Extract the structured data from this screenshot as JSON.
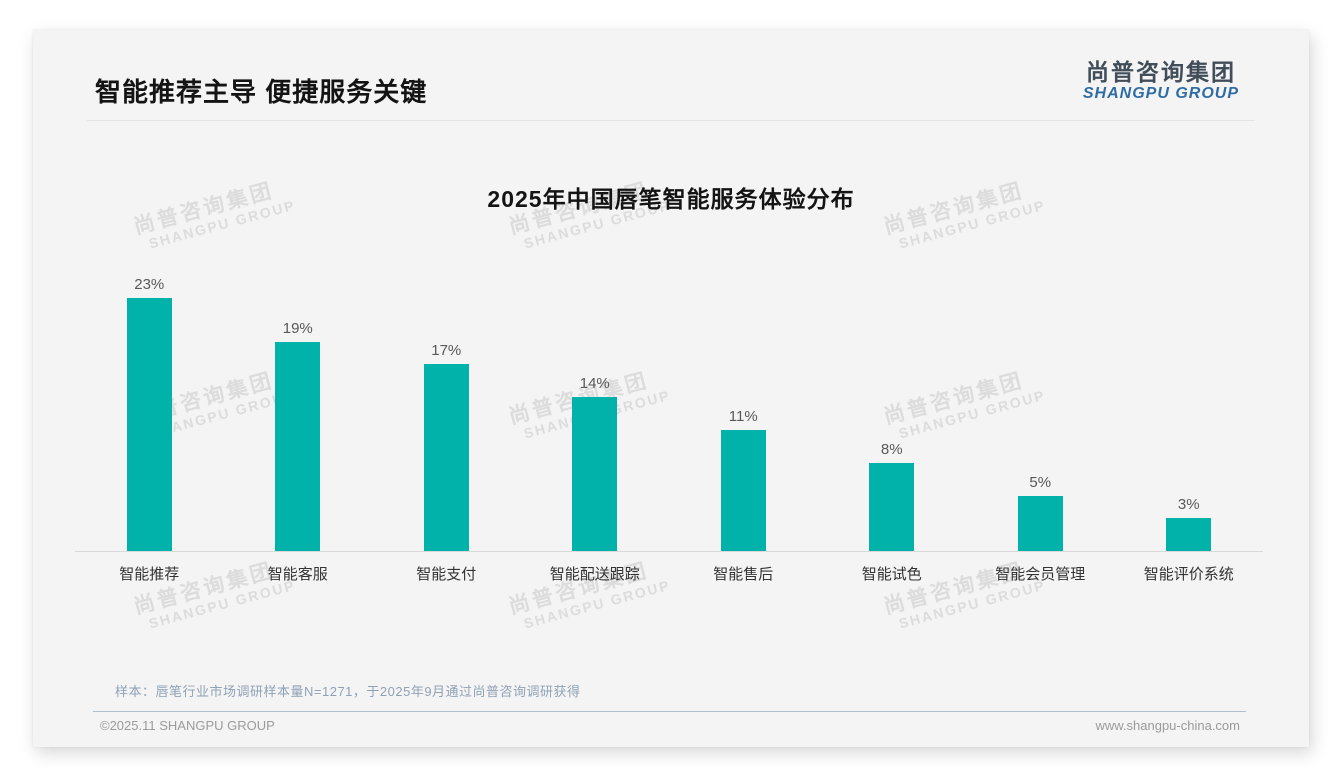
{
  "page": {
    "title": "智能推荐主导 便捷服务关键",
    "logo": {
      "zh": "尚普咨询集团",
      "en": "SHANGPU GROUP"
    },
    "footnote": "样本：唇笔行业市场调研样本量N=1271，于2025年9月通过尚普咨询调研获得",
    "copyright": "©2025.11 SHANGPU GROUP",
    "website": "www.shangpu-china.com",
    "watermark": {
      "zh": "尚普咨询集团",
      "en": "SHANGPU GROUP"
    }
  },
  "chart_data": {
    "type": "bar",
    "title": "2025年中国唇笔智能服务体验分布",
    "categories": [
      "智能推荐",
      "智能客服",
      "智能支付",
      "智能配送跟踪",
      "智能售后",
      "智能试色",
      "智能会员管理",
      "智能评价系统"
    ],
    "values": [
      23,
      19,
      17,
      14,
      11,
      8,
      5,
      3
    ],
    "value_labels": [
      "23%",
      "19%",
      "17%",
      "14%",
      "11%",
      "8%",
      "5%",
      "3%"
    ],
    "unit": "%",
    "bar_color": "#00b2a9",
    "ylim": [
      0,
      25
    ],
    "grid": false,
    "legend": "none"
  }
}
